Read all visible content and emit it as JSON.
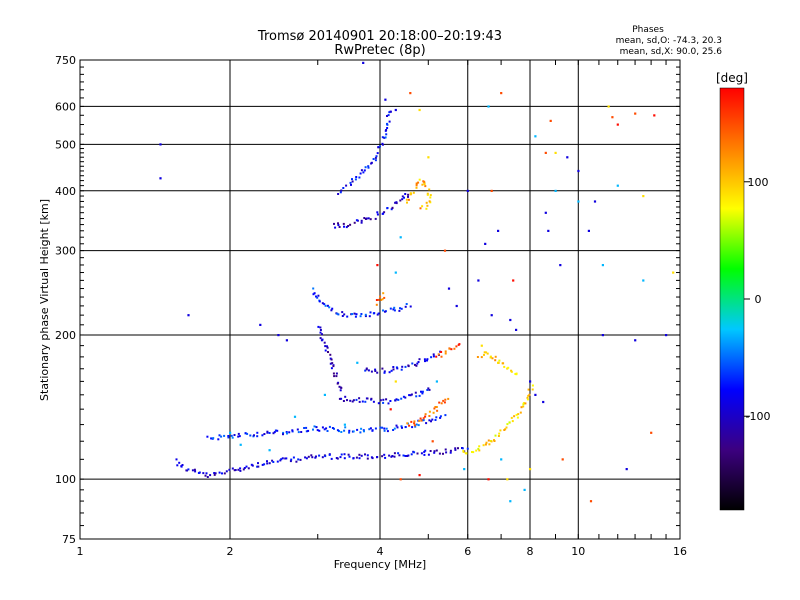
{
  "chart_data": {
    "type": "scatter",
    "title": "Tromsø 20140901 20:18:00–20:19:43",
    "subtitle": "RwPretec (8p)",
    "stats": {
      "heading": "Phases",
      "line1": "mean, sd,O: -74.3, 20.3",
      "line2": "mean, sd,X:  90.0, 25.6"
    },
    "xlabel": "Frequency [MHz]",
    "ylabel": "Stationary phase Virtual Height [km]",
    "x_scale": "log",
    "y_scale": "log",
    "xlim": [
      1,
      16
    ],
    "ylim": [
      75,
      750
    ],
    "x_ticks": [
      {
        "value": 1,
        "label": "1"
      },
      {
        "value": 2,
        "label": "2"
      },
      {
        "value": 4,
        "label": "4"
      },
      {
        "value": 6,
        "label": "6"
      },
      {
        "value": 8,
        "label": "8"
      },
      {
        "value": 10,
        "label": "10"
      },
      {
        "value": 16,
        "label": "16"
      }
    ],
    "y_ticks": [
      {
        "value": 75,
        "label": "75"
      },
      {
        "value": 100,
        "label": "100"
      },
      {
        "value": 200,
        "label": "200"
      },
      {
        "value": 300,
        "label": "300"
      },
      {
        "value": 400,
        "label": "400"
      },
      {
        "value": 500,
        "label": "500"
      },
      {
        "value": 600,
        "label": "600"
      },
      {
        "value": 750,
        "label": "750"
      }
    ],
    "x_grid": [
      2,
      4,
      6,
      8,
      10
    ],
    "y_grid": [
      100,
      200,
      300,
      400,
      500,
      600
    ],
    "grid": true,
    "colorbar": {
      "label": "[deg]",
      "range": [
        -180,
        180
      ],
      "ticks": [
        {
          "value": 100,
          "label": "100"
        },
        {
          "value": 0,
          "label": "0"
        },
        {
          "value": -100,
          "label": "-100"
        }
      ],
      "colors": [
        "#000000",
        "#3c0080",
        "#0000ff",
        "#00c8ff",
        "#00ff00",
        "#ffff00",
        "#ff8000",
        "#ff0000"
      ]
    },
    "traces": [
      {
        "phase": -95,
        "points": [
          [
            1.55,
            110
          ],
          [
            1.6,
            106
          ],
          [
            1.7,
            104
          ],
          [
            1.8,
            102
          ],
          [
            1.9,
            103
          ],
          [
            2.0,
            105
          ],
          [
            2.2,
            107
          ],
          [
            2.4,
            109
          ],
          [
            2.6,
            110
          ],
          [
            2.8,
            111
          ],
          [
            3.0,
            112
          ],
          [
            3.3,
            112
          ],
          [
            3.6,
            112
          ],
          [
            4.0,
            112
          ],
          [
            4.5,
            113
          ],
          [
            5.0,
            114
          ],
          [
            5.5,
            115
          ],
          [
            6.0,
            116
          ]
        ]
      },
      {
        "phase": -70,
        "points": [
          [
            1.8,
            122
          ],
          [
            2.0,
            124
          ],
          [
            2.3,
            125
          ],
          [
            2.6,
            126
          ],
          [
            2.9,
            128
          ],
          [
            3.2,
            128
          ],
          [
            3.5,
            127
          ],
          [
            3.8,
            127
          ],
          [
            4.2,
            128
          ],
          [
            4.6,
            130
          ],
          [
            5.0,
            133
          ],
          [
            5.4,
            136
          ]
        ]
      },
      {
        "phase": -85,
        "points": [
          [
            3.3,
            148
          ],
          [
            3.6,
            147
          ],
          [
            3.9,
            146
          ],
          [
            4.2,
            146
          ],
          [
            4.5,
            149
          ],
          [
            4.8,
            152
          ],
          [
            5.1,
            156
          ]
        ]
      },
      {
        "phase": -90,
        "points": [
          [
            3.7,
            170
          ],
          [
            4.0,
            169
          ],
          [
            4.3,
            171
          ],
          [
            4.6,
            174
          ],
          [
            4.9,
            178
          ],
          [
            5.3,
            184
          ]
        ]
      },
      {
        "phase": -100,
        "points": [
          [
            3.0,
            210
          ],
          [
            3.05,
            200
          ],
          [
            3.1,
            190
          ],
          [
            3.15,
            180
          ],
          [
            3.2,
            172
          ],
          [
            3.25,
            165
          ],
          [
            3.3,
            158
          ],
          [
            3.35,
            152
          ]
        ]
      },
      {
        "phase": -75,
        "points": [
          [
            2.9,
            250
          ],
          [
            3.0,
            240
          ],
          [
            3.1,
            232
          ],
          [
            3.2,
            226
          ],
          [
            3.4,
            222
          ],
          [
            3.6,
            220
          ],
          [
            3.9,
            222
          ],
          [
            4.2,
            226
          ],
          [
            4.6,
            232
          ]
        ]
      },
      {
        "phase": -100,
        "points": [
          [
            3.2,
            340
          ],
          [
            3.4,
            340
          ],
          [
            3.6,
            345
          ],
          [
            3.8,
            352
          ],
          [
            4.0,
            360
          ],
          [
            4.2,
            372
          ],
          [
            4.4,
            385
          ],
          [
            4.6,
            400
          ]
        ]
      },
      {
        "phase": -80,
        "points": [
          [
            3.3,
            400
          ],
          [
            3.5,
            420
          ],
          [
            3.7,
            445
          ],
          [
            3.9,
            470
          ],
          [
            4.0,
            500
          ],
          [
            4.1,
            540
          ],
          [
            4.2,
            600
          ]
        ]
      },
      {
        "phase": 110,
        "points": [
          [
            4.5,
            380
          ],
          [
            4.6,
            395
          ],
          [
            4.7,
            410
          ],
          [
            4.8,
            420
          ],
          [
            4.9,
            415
          ],
          [
            5.0,
            400
          ],
          [
            5.0,
            380
          ],
          [
            4.8,
            365
          ]
        ]
      },
      {
        "phase": 140,
        "points": [
          [
            4.5,
            130
          ],
          [
            4.7,
            132
          ],
          [
            4.9,
            136
          ],
          [
            5.1,
            140
          ],
          [
            5.3,
            145
          ],
          [
            5.5,
            150
          ]
        ]
      },
      {
        "phase": 150,
        "points": [
          [
            5.2,
            180
          ],
          [
            5.4,
            185
          ],
          [
            5.6,
            190
          ],
          [
            5.8,
            195
          ]
        ]
      },
      {
        "phase": 95,
        "points": [
          [
            5.8,
            114
          ],
          [
            6.1,
            115
          ],
          [
            6.4,
            117
          ],
          [
            6.7,
            121
          ],
          [
            7.0,
            126
          ],
          [
            7.3,
            132
          ],
          [
            7.6,
            140
          ],
          [
            7.9,
            150
          ],
          [
            8.1,
            158
          ]
        ]
      },
      {
        "phase": 100,
        "points": [
          [
            6.3,
            180
          ],
          [
            6.5,
            185
          ],
          [
            6.8,
            178
          ],
          [
            7.2,
            170
          ],
          [
            7.6,
            165
          ]
        ]
      },
      {
        "phase": 140,
        "points": [
          [
            3.9,
            235
          ],
          [
            4.0,
            240
          ],
          [
            4.1,
            245
          ]
        ]
      }
    ],
    "scatter": [
      {
        "phase": -90,
        "points": [
          [
            1.45,
            500
          ],
          [
            1.45,
            425
          ],
          [
            1.65,
            220
          ],
          [
            2.3,
            210
          ],
          [
            2.5,
            200
          ],
          [
            2.6,
            195
          ],
          [
            3.7,
            740
          ],
          [
            4.1,
            620
          ],
          [
            4.3,
            590
          ],
          [
            5.5,
            250
          ],
          [
            5.7,
            230
          ],
          [
            6.0,
            400
          ],
          [
            6.3,
            260
          ],
          [
            6.5,
            310
          ],
          [
            6.7,
            220
          ],
          [
            6.9,
            330
          ],
          [
            7.3,
            215
          ],
          [
            7.5,
            205
          ],
          [
            8.0,
            160
          ],
          [
            8.2,
            150
          ],
          [
            8.5,
            145
          ],
          [
            8.6,
            360
          ],
          [
            8.7,
            330
          ],
          [
            9.2,
            280
          ],
          [
            9.5,
            470
          ],
          [
            10.0,
            440
          ],
          [
            10.5,
            330
          ],
          [
            10.8,
            380
          ],
          [
            11.2,
            200
          ],
          [
            12.5,
            105
          ],
          [
            13.0,
            195
          ],
          [
            15.0,
            200
          ]
        ]
      },
      {
        "phase": -30,
        "points": [
          [
            2.0,
            125
          ],
          [
            2.1,
            118
          ],
          [
            2.4,
            115
          ],
          [
            2.7,
            135
          ],
          [
            3.1,
            150
          ],
          [
            3.4,
            130
          ],
          [
            3.6,
            175
          ],
          [
            4.4,
            320
          ],
          [
            4.3,
            270
          ],
          [
            5.2,
            160
          ],
          [
            5.9,
            105
          ],
          [
            6.6,
            600
          ],
          [
            7.0,
            110
          ],
          [
            7.3,
            90
          ],
          [
            7.8,
            95
          ],
          [
            8.2,
            520
          ],
          [
            9.0,
            400
          ],
          [
            10.0,
            380
          ],
          [
            11.2,
            280
          ],
          [
            13.5,
            260
          ],
          [
            12.0,
            410
          ]
        ]
      },
      {
        "phase": 90,
        "points": [
          [
            4.3,
            160
          ],
          [
            4.8,
            590
          ],
          [
            5.0,
            470
          ],
          [
            6.4,
            190
          ],
          [
            6.9,
            175
          ],
          [
            7.2,
            100
          ],
          [
            8.0,
            105
          ],
          [
            9.0,
            480
          ],
          [
            11.5,
            600
          ],
          [
            13.5,
            390
          ],
          [
            15.5,
            270
          ]
        ]
      },
      {
        "phase": 150,
        "points": [
          [
            4.4,
            100
          ],
          [
            4.6,
            640
          ],
          [
            5.1,
            120
          ],
          [
            7.0,
            640
          ],
          [
            8.6,
            480
          ],
          [
            8.8,
            560
          ],
          [
            9.3,
            110
          ],
          [
            10.6,
            90
          ],
          [
            11.7,
            570
          ],
          [
            13.0,
            580
          ],
          [
            14.0,
            125
          ],
          [
            5.4,
            300
          ],
          [
            6.7,
            400
          ]
        ]
      },
      {
        "phase": 175,
        "points": [
          [
            3.95,
            280
          ],
          [
            4.2,
            140
          ],
          [
            4.8,
            102
          ],
          [
            6.6,
            100
          ],
          [
            7.4,
            260
          ],
          [
            12.0,
            550
          ],
          [
            14.2,
            575
          ]
        ]
      }
    ]
  }
}
